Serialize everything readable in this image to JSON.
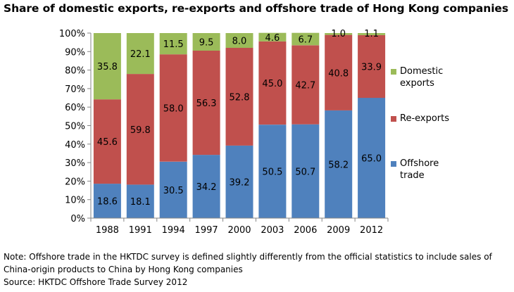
{
  "title": "Share of domestic exports, re-exports and offshore trade of Hong Kong companies",
  "chart_data": {
    "type": "bar",
    "stacked": true,
    "categories": [
      "1988",
      "1991",
      "1994",
      "1997",
      "2000",
      "2003",
      "2006",
      "2009",
      "2012"
    ],
    "series": [
      {
        "name": "Offshore trade",
        "color": "#4F81BD",
        "values": [
          18.6,
          18.1,
          30.5,
          34.2,
          39.2,
          50.5,
          50.7,
          58.2,
          65.0
        ],
        "labels": [
          "18.6",
          "18.1",
          "30.5",
          "34.2",
          "39.2",
          "50.5",
          "50.7",
          "58.2",
          "65.0"
        ]
      },
      {
        "name": "Re-exports",
        "color": "#C0504D",
        "values": [
          45.6,
          59.8,
          58.0,
          56.3,
          52.8,
          45.0,
          42.7,
          40.8,
          33.9
        ],
        "labels": [
          "45.6",
          "59.8",
          "58.0",
          "56.3",
          "52.8",
          "45.0",
          "42.7",
          "40.8",
          "33.9"
        ]
      },
      {
        "name": "Domestic exports",
        "color": "#9BBB59",
        "values": [
          35.8,
          22.1,
          11.5,
          9.5,
          8.0,
          4.6,
          6.7,
          1.0,
          1.1
        ],
        "labels": [
          "35.8",
          "22.1",
          "11.5",
          "9.5",
          "8.0",
          "4.6",
          "6.7",
          "1.0",
          "1.1"
        ]
      }
    ],
    "yticks": [
      "0%",
      "10%",
      "20%",
      "30%",
      "40%",
      "50%",
      "60%",
      "70%",
      "80%",
      "90%",
      "100%"
    ],
    "ylim": [
      0,
      100
    ],
    "legend_position": "right",
    "grid": false
  },
  "legend": [
    {
      "line1": "Domestic",
      "line2": "exports"
    },
    {
      "line1": "Re-exports",
      "line2": ""
    },
    {
      "line1": "Offshore",
      "line2": "trade"
    }
  ],
  "notes": {
    "line1": "Note: Offshore trade in the HKTDC survey is defined slightly differently from the official statistics to include sales of",
    "line2": "China-origin products to China by Hong Kong companies",
    "source": "Source: HKTDC Offshore Trade Survey 2012"
  }
}
